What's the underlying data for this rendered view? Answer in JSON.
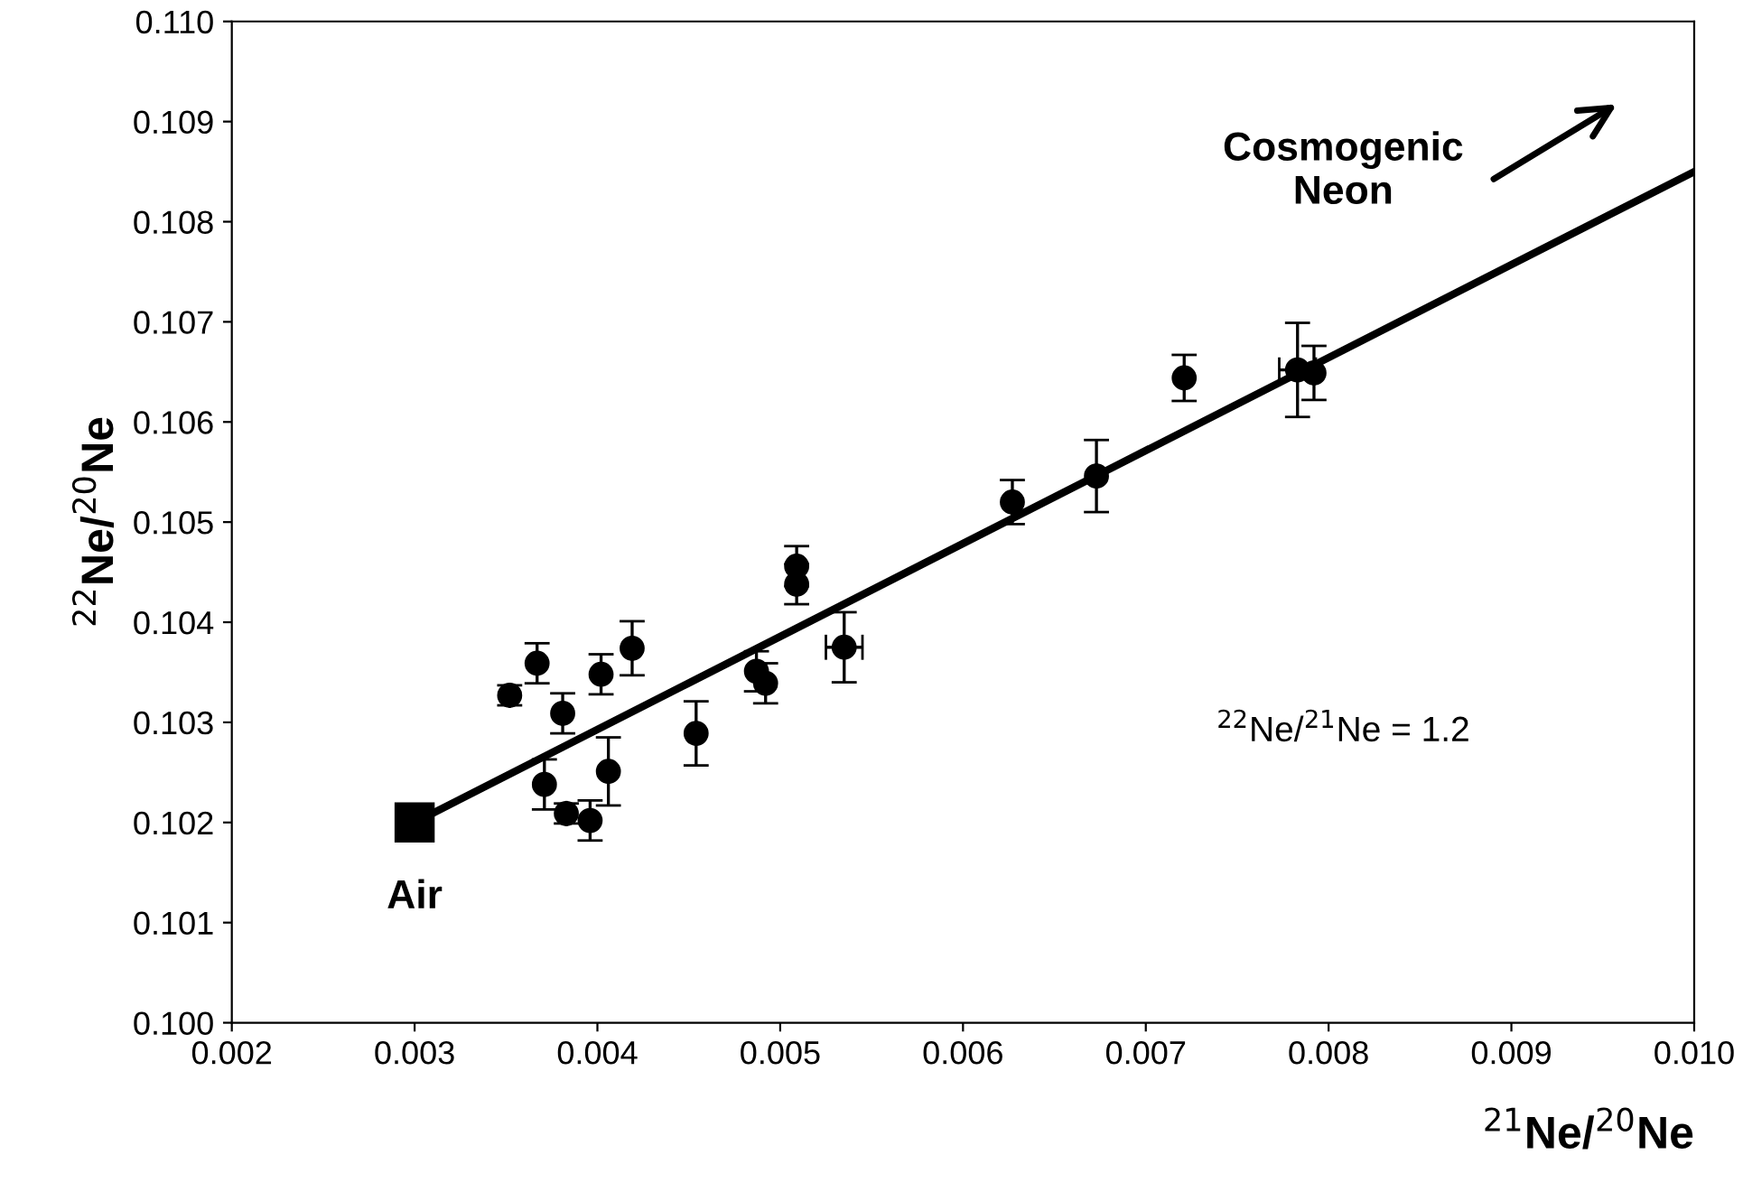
{
  "chart_data": {
    "type": "scatter",
    "xlabel": "$^{21}$Ne/$^{20}$Ne",
    "ylabel": "$^{22}$Ne/$^{20}$Ne",
    "xlim": [
      0.002,
      0.01
    ],
    "ylim": [
      0.1,
      0.11
    ],
    "xticks": [
      0.002,
      0.003,
      0.004,
      0.005,
      0.006,
      0.007,
      0.008,
      0.009,
      {
        "value": 0.01,
        "label": "0.010"
      }
    ],
    "yticks": [
      {
        "value": 0.1,
        "label": "0.100"
      },
      0.101,
      0.102,
      0.103,
      0.104,
      0.105,
      0.106,
      0.107,
      0.108,
      0.109,
      {
        "value": 0.11,
        "label": "0.110"
      }
    ],
    "grid": false,
    "legend": false,
    "series": [
      {
        "marker": "circle",
        "color": "#000000",
        "x": [
          0.00352,
          0.00367,
          0.00381,
          0.00402,
          0.00419,
          0.00371,
          0.00383,
          0.00396,
          0.00406,
          0.00454,
          0.00487,
          0.00492,
          0.00509,
          0.00509,
          0.00535,
          0.00627,
          0.00673,
          0.00721,
          0.00783,
          0.00792
        ],
        "values": [
          0.10327,
          0.10359,
          0.10309,
          0.10348,
          0.10374,
          0.10238,
          0.10209,
          0.10202,
          0.10251,
          0.10289,
          0.10351,
          0.10339,
          0.10456,
          0.10438,
          0.10375,
          0.1052,
          0.10546,
          0.10644,
          0.10652,
          0.10649
        ],
        "errors": [
          0.0001,
          0.0002,
          0.0002,
          0.0002,
          0.00027,
          0.00025,
          0.0001,
          0.0002,
          0.00034,
          0.00032,
          0.0002,
          0.0002,
          0.0002,
          0.0002,
          0.00035,
          0.00022,
          0.00036,
          0.00023,
          0.00047,
          0.00027
        ],
        "xerrors": [
          null,
          null,
          null,
          null,
          null,
          null,
          null,
          null,
          null,
          null,
          null,
          null,
          null,
          null,
          0.0001,
          null,
          null,
          null,
          0.0001,
          null
        ]
      },
      {
        "marker": "square",
        "color": "#000000",
        "x": [
          0.003
        ],
        "values": [
          0.102
        ]
      },
      {
        "type": "line",
        "line_style": "solid",
        "color": "#000000",
        "x": [
          0.003,
          0.01
        ],
        "values": [
          0.102,
          0.1085
        ]
      }
    ],
    "annotations": [
      "Cosmogenic\nNeon",
      {
        "text": "Air",
        "x": 0.003,
        "y": 0.102
      },
      "$^{22}$Ne/$^{21}$Ne = 1.2"
    ]
  }
}
